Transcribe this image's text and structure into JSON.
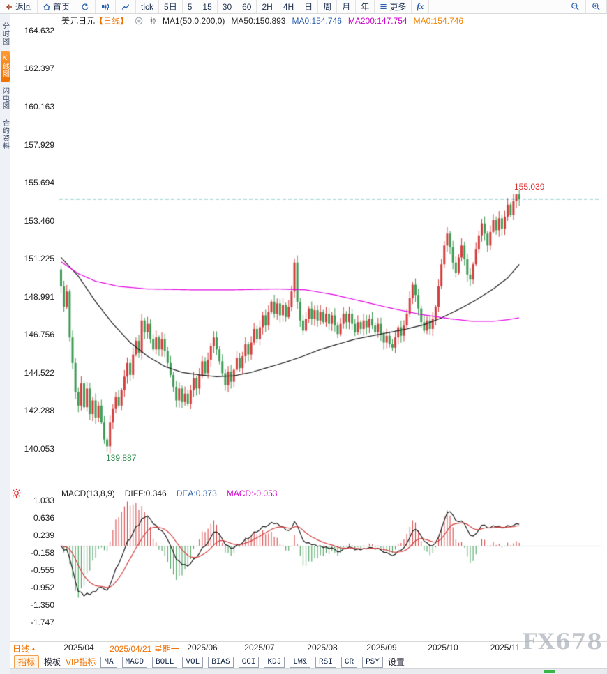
{
  "toolbar": {
    "back": "返回",
    "home": "首页",
    "tick": "tick",
    "five_day": "5日",
    "p5": "5",
    "p15": "15",
    "p30": "30",
    "p60": "60",
    "p2h": "2H",
    "p4h": "4H",
    "day": "日",
    "week": "周",
    "month": "月",
    "year": "年",
    "more": "更多",
    "fx": "fx"
  },
  "sidebar": {
    "tabs": [
      {
        "label": "分时图",
        "active": false
      },
      {
        "label": "K线图",
        "active": true
      },
      {
        "label": "闪电图",
        "active": false
      },
      {
        "label": "合约资料",
        "active": false
      }
    ]
  },
  "chart_header": {
    "symbol": "美元日元",
    "period_tag": "【日线】",
    "ma_settings": "MA1(50,0,200,0)",
    "ma50": "MA50:150.893",
    "ma0_blue": "MA0:154.746",
    "ma200": "MA200:147.754",
    "ma0_orange": "MA0:154.746"
  },
  "main_chart": {
    "y_ticks": [
      "164.632",
      "162.397",
      "160.163",
      "157.929",
      "155.694",
      "153.460",
      "151.225",
      "148.991",
      "146.756",
      "144.522",
      "142.288",
      "140.053"
    ],
    "high_label": "155.039",
    "low_label": "139.887"
  },
  "macd_header": {
    "title": "MACD(13,8,9)",
    "diff": "DIFF:0.346",
    "dea": "DEA:0.373",
    "macd": "MACD:-0.053"
  },
  "macd_axis": {
    "ticks": [
      "1.033",
      "0.636",
      "0.239",
      "-0.158",
      "-0.555",
      "-0.952",
      "-1.350",
      "-1.747"
    ]
  },
  "x_axis": {
    "period": "日线",
    "labels": [
      {
        "text": "2025/04",
        "highlight": false
      },
      {
        "text": "2025/04/21 星期一",
        "highlight": true
      },
      {
        "text": "2025/06",
        "highlight": false
      },
      {
        "text": "2025/07",
        "highlight": false
      },
      {
        "text": "2025/08",
        "highlight": false
      },
      {
        "text": "2025/09",
        "highlight": false
      },
      {
        "text": "2025/10",
        "highlight": false
      },
      {
        "text": "2025/11",
        "highlight": false
      }
    ]
  },
  "bottom_bar": {
    "tab_indicator": "指标",
    "tab_template": "模板",
    "tab_vip": "VIP指标",
    "indicators": [
      "MA",
      "MACD",
      "BOLL",
      "VOL",
      "BIAS",
      "CCI",
      "KDJ",
      "LW&",
      "RSI",
      "CR",
      "PSY"
    ],
    "settings": "设置"
  },
  "watermark": "FX678",
  "chart_data": {
    "type": "candlestick+macd",
    "title": "美元日元 日线 (USD/JPY Daily)",
    "x_range": [
      "2025/04",
      "2025/11"
    ],
    "ylim": [
      139.0,
      165.7
    ],
    "current_price": 154.746,
    "ma50_last": 150.893,
    "ma200_last": 147.754,
    "first_open": 150.6,
    "closes": [
      149.6,
      148.4,
      149.3,
      146.6,
      145.1,
      143.4,
      142.6,
      143.9,
      142.5,
      143.6,
      142.1,
      142.9,
      141.9,
      142.6,
      141.6,
      140.6,
      140.2,
      141.6,
      142.4,
      143.1,
      142.6,
      143.5,
      144.3,
      145.1,
      144.4,
      145.6,
      146.4,
      145.7,
      147.6,
      146.9,
      147.4,
      146.5,
      145.9,
      146.6,
      145.9,
      146.5,
      145.8,
      145.1,
      144.4,
      143.7,
      142.9,
      143.6,
      142.8,
      143.3,
      142.7,
      143.5,
      144.2,
      143.6,
      144.4,
      145.2,
      144.5,
      145.3,
      146.1,
      146.6,
      145.9,
      145.2,
      144.5,
      143.8,
      144.6,
      144.0,
      144.7,
      145.4,
      144.8,
      145.5,
      146.2,
      145.6,
      146.3,
      147.1,
      146.5,
      147.2,
      147.9,
      147.3,
      148.1,
      148.7,
      148.0,
      148.6,
      147.9,
      148.5,
      147.8,
      148.4,
      149.3,
      151.0,
      148.7,
      147.6,
      147.0,
      147.7,
      148.3,
      147.7,
      148.2,
      147.6,
      148.1,
      147.5,
      148.0,
      147.4,
      147.9,
      147.3,
      146.8,
      147.4,
      148.0,
      147.5,
      148.0,
      147.4,
      146.9,
      147.5,
      147.1,
      147.6,
      147.2,
      147.7,
      147.3,
      146.9,
      147.4,
      146.8,
      146.3,
      146.7,
      146.2,
      146.0,
      146.6,
      147.2,
      146.7,
      147.3,
      148.0,
      148.9,
      149.7,
      149.1,
      148.3,
      147.5,
      147.0,
      147.6,
      147.1,
      147.7,
      148.4,
      149.6,
      150.9,
      152.0,
      152.7,
      151.9,
      151.0,
      150.4,
      151.3,
      152.0,
      151.2,
      150.3,
      150.0,
      150.9,
      151.8,
      152.6,
      153.3,
      152.7,
      152.0,
      152.8,
      153.5,
      152.9,
      153.6,
      153.0,
      153.7,
      154.4,
      153.8,
      154.6,
      155.0,
      154.75
    ],
    "wick_overrides": [
      {
        "index": 16,
        "low": 139.887
      },
      {
        "index": 81,
        "high": 151.25
      },
      {
        "index": 158,
        "high": 155.039
      }
    ],
    "low_point": {
      "index": 16,
      "price": 139.887
    },
    "high_point": {
      "index": 158,
      "price": 155.039
    },
    "ma50_anchors": [
      [
        0,
        151.3
      ],
      [
        6,
        150.2
      ],
      [
        12,
        148.7
      ],
      [
        18,
        147.4
      ],
      [
        24,
        146.3
      ],
      [
        30,
        145.5
      ],
      [
        36,
        144.9
      ],
      [
        42,
        144.55
      ],
      [
        48,
        144.4
      ],
      [
        54,
        144.3
      ],
      [
        60,
        144.35
      ],
      [
        66,
        144.55
      ],
      [
        72,
        144.85
      ],
      [
        78,
        145.15
      ],
      [
        84,
        145.5
      ],
      [
        90,
        145.9
      ],
      [
        96,
        146.2
      ],
      [
        102,
        146.5
      ],
      [
        108,
        146.7
      ],
      [
        114,
        146.9
      ],
      [
        120,
        147.1
      ],
      [
        126,
        147.35
      ],
      [
        132,
        147.75
      ],
      [
        138,
        148.25
      ],
      [
        144,
        148.8
      ],
      [
        150,
        149.45
      ],
      [
        155,
        150.1
      ],
      [
        159,
        150.893
      ]
    ],
    "ma200_anchors": [
      [
        0,
        151.05
      ],
      [
        6,
        150.35
      ],
      [
        12,
        149.9
      ],
      [
        20,
        149.6
      ],
      [
        30,
        149.45
      ],
      [
        45,
        149.4
      ],
      [
        60,
        149.4
      ],
      [
        75,
        149.45
      ],
      [
        85,
        149.4
      ],
      [
        95,
        149.1
      ],
      [
        105,
        148.7
      ],
      [
        115,
        148.3
      ],
      [
        125,
        147.95
      ],
      [
        135,
        147.7
      ],
      [
        143,
        147.55
      ],
      [
        150,
        147.55
      ],
      [
        155,
        147.65
      ],
      [
        159,
        147.754
      ]
    ],
    "macd": {
      "fast": 8,
      "slow": 13,
      "signal": 9,
      "diff_last": 0.346,
      "dea_last": 0.373,
      "hist_last": -0.053,
      "ylim": [
        -1.747,
        1.033
      ]
    },
    "colors": {
      "up": "#d43c3c",
      "down": "#3d9c54",
      "ma50": "#1a1a1a",
      "ma200": "#e400e4",
      "price_line": "#2fa3a3",
      "macd_diff": "#1a1a1a",
      "macd_dea": "#d43c3c",
      "hist_up": "#d43c3c",
      "hist_down": "#3d9c54"
    }
  }
}
